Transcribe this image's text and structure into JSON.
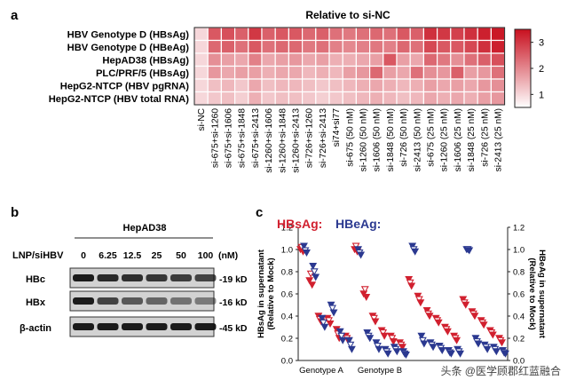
{
  "panel_labels": {
    "a": "a",
    "b": "b",
    "c": "c"
  },
  "colors": {
    "heat_low": "#ffffff",
    "heat_high": "#c8101f",
    "hbsag": "#d1202f",
    "hbeag": "#2b3990"
  },
  "watermark": "头条 @医学顾郡红蓝融合",
  "chart_data": [
    {
      "type": "heatmap",
      "title": "Relative to si-NC",
      "rows": [
        "HBV Genotype D (HBsAg)",
        "HBV Genotype D (HBeAg)",
        "HepAD38 (HBsAg)",
        "PLC/PRF/5 (HBsAg)",
        "HepG2-NTCP (HBV pgRNA)",
        "HepG2-NTCP (HBV total RNA)"
      ],
      "columns": [
        "si-NC",
        "si-675+si-1260",
        "si-675+si-1606",
        "si-675+si-1848",
        "si-675+si-2413",
        "si-1260+si-1606",
        "si-1260+si-1848",
        "si-1260+si-2413",
        "si-726+si-1260",
        "si-726+si-2413",
        "si74+si77",
        "si-675 (50 nM)",
        "si-1260 (50 nM)",
        "si-1606 (50 nM)",
        "si-1848 (50 nM)",
        "si-726 (50 nM)",
        "si-2413 (50 nM)",
        "si-675 (25 nM)",
        "si-1260 (25 nM)",
        "si-1606 (25 nM)",
        "si-1848 (25 nM)",
        "si-726 (25 nM)",
        "si-2413 (25 nM)"
      ],
      "values": [
        [
          1.0,
          2.6,
          2.7,
          2.5,
          3.0,
          2.5,
          2.6,
          2.6,
          2.4,
          2.5,
          2.3,
          2.2,
          2.3,
          2.4,
          2.3,
          2.6,
          2.5,
          3.1,
          3.0,
          2.9,
          3.1,
          3.3,
          3.4
        ],
        [
          1.0,
          2.4,
          2.5,
          2.3,
          2.6,
          2.3,
          2.4,
          2.4,
          2.2,
          2.3,
          2.1,
          2.0,
          2.1,
          2.2,
          2.1,
          2.4,
          2.3,
          2.8,
          2.6,
          2.6,
          2.8,
          3.1,
          3.3
        ],
        [
          1.0,
          1.9,
          1.7,
          1.6,
          2.1,
          1.6,
          1.7,
          1.8,
          1.6,
          1.7,
          1.5,
          1.5,
          1.6,
          1.7,
          2.6,
          1.7,
          1.6,
          2.4,
          2.2,
          1.9,
          2.3,
          2.5,
          2.7
        ],
        [
          1.0,
          1.8,
          1.6,
          1.7,
          1.7,
          1.5,
          1.6,
          1.6,
          1.4,
          1.5,
          1.4,
          1.7,
          1.8,
          2.4,
          1.7,
          1.6,
          2.3,
          1.9,
          1.8,
          2.5,
          1.7,
          1.8,
          2.3
        ],
        [
          1.0,
          1.3,
          1.4,
          1.2,
          1.6,
          1.3,
          1.4,
          1.4,
          1.3,
          1.2,
          1.3,
          1.4,
          1.5,
          1.6,
          1.5,
          1.4,
          1.5,
          1.7,
          1.6,
          1.7,
          1.6,
          1.8,
          1.9
        ],
        [
          1.0,
          1.2,
          1.3,
          1.1,
          1.5,
          1.2,
          1.3,
          1.3,
          1.2,
          1.1,
          1.2,
          1.3,
          1.4,
          1.5,
          1.4,
          1.3,
          1.4,
          1.6,
          1.5,
          1.6,
          1.5,
          1.7,
          1.8
        ]
      ],
      "colorbar": {
        "ticks": [
          1,
          2,
          3
        ],
        "range": [
          0.5,
          3.5
        ]
      }
    },
    {
      "type": "western_blot",
      "header": "HepAD38",
      "row_label": "LNP/siHBV",
      "lanes": [
        "0",
        "6.25",
        "12.5",
        "25",
        "50",
        "100"
      ],
      "unit": "(nM)",
      "bands": [
        {
          "name": "HBc",
          "size": "-19 kD",
          "intensity": [
            1.0,
            0.9,
            0.85,
            0.8,
            0.75,
            0.7
          ]
        },
        {
          "name": "HBx",
          "size": "-16 kD",
          "intensity": [
            1.0,
            0.7,
            0.55,
            0.45,
            0.35,
            0.3
          ]
        },
        {
          "name": "β-actin",
          "size": "-45 kD",
          "intensity": [
            1.0,
            1.0,
            1.0,
            1.0,
            1.0,
            1.0
          ]
        }
      ]
    },
    {
      "type": "scatter",
      "legend": [
        {
          "name": "HBsAg:",
          "color": "#d1202f"
        },
        {
          "name": "HBeAg:",
          "color": "#2b3990"
        }
      ],
      "ylabel_left": "HBsAg in supernatant (Relative to Mock)",
      "ylabel_right": "HBeAg in supernatant (Relative to Mock)",
      "ylim": [
        0,
        1.2
      ],
      "yticks": [
        0.0,
        0.2,
        0.4,
        0.6,
        0.8,
        1.0,
        1.2
      ],
      "xlabels": [
        "Genotype A",
        "Genotype B"
      ],
      "series": [
        {
          "name": "HBsAg:",
          "points": [
            {
              "x": 0,
              "y": 1.0
            },
            {
              "x": 0,
              "y": 1.02
            },
            {
              "x": 0,
              "y": 0.98
            },
            {
              "x": 1,
              "y": 0.72
            },
            {
              "x": 1,
              "y": 0.78
            },
            {
              "x": 1,
              "y": 0.68
            },
            {
              "x": 2,
              "y": 0.4
            },
            {
              "x": 2,
              "y": 0.37
            },
            {
              "x": 2,
              "y": 0.35
            },
            {
              "x": 3,
              "y": 0.38
            },
            {
              "x": 3,
              "y": 0.36
            },
            {
              "x": 3,
              "y": 0.33
            },
            {
              "x": 4,
              "y": 0.28
            },
            {
              "x": 4,
              "y": 0.24
            },
            {
              "x": 4,
              "y": 0.2
            },
            {
              "x": 5,
              "y": 0.22
            },
            {
              "x": 5,
              "y": 0.2
            },
            {
              "x": 5,
              "y": 0.18
            },
            {
              "x": 6,
              "y": 1.0
            },
            {
              "x": 6,
              "y": 1.03
            },
            {
              "x": 6,
              "y": 0.98
            },
            {
              "x": 7,
              "y": 0.6
            },
            {
              "x": 7,
              "y": 0.64
            },
            {
              "x": 7,
              "y": 0.57
            },
            {
              "x": 8,
              "y": 0.4
            },
            {
              "x": 8,
              "y": 0.38
            },
            {
              "x": 8,
              "y": 0.35
            },
            {
              "x": 9,
              "y": 0.27
            },
            {
              "x": 9,
              "y": 0.25
            },
            {
              "x": 9,
              "y": 0.22
            },
            {
              "x": 10,
              "y": 0.22
            },
            {
              "x": 10,
              "y": 0.2
            },
            {
              "x": 10,
              "y": 0.17
            },
            {
              "x": 11,
              "y": 0.16
            },
            {
              "x": 11,
              "y": 0.14
            },
            {
              "x": 11,
              "y": 0.12
            },
            {
              "x": 12,
              "y": 0.73
            },
            {
              "x": 12,
              "y": 0.7
            },
            {
              "x": 12,
              "y": 0.67
            },
            {
              "x": 13,
              "y": 0.58
            },
            {
              "x": 13,
              "y": 0.55
            },
            {
              "x": 13,
              "y": 0.52
            },
            {
              "x": 14,
              "y": 0.45
            },
            {
              "x": 14,
              "y": 0.42
            },
            {
              "x": 14,
              "y": 0.4
            },
            {
              "x": 15,
              "y": 0.38
            },
            {
              "x": 15,
              "y": 0.36
            },
            {
              "x": 15,
              "y": 0.34
            },
            {
              "x": 16,
              "y": 0.3
            },
            {
              "x": 16,
              "y": 0.28
            },
            {
              "x": 16,
              "y": 0.26
            },
            {
              "x": 17,
              "y": 0.22
            },
            {
              "x": 17,
              "y": 0.2
            },
            {
              "x": 17,
              "y": 0.18
            },
            {
              "x": 18,
              "y": 0.55
            },
            {
              "x": 18,
              "y": 0.52
            },
            {
              "x": 18,
              "y": 0.5
            },
            {
              "x": 19,
              "y": 0.44
            },
            {
              "x": 19,
              "y": 0.42
            },
            {
              "x": 19,
              "y": 0.4
            },
            {
              "x": 20,
              "y": 0.36
            },
            {
              "x": 20,
              "y": 0.34
            },
            {
              "x": 20,
              "y": 0.32
            },
            {
              "x": 21,
              "y": 0.27
            },
            {
              "x": 21,
              "y": 0.25
            },
            {
              "x": 21,
              "y": 0.23
            },
            {
              "x": 22,
              "y": 0.2
            },
            {
              "x": 22,
              "y": 0.18
            },
            {
              "x": 22,
              "y": 0.16
            }
          ]
        },
        {
          "name": "HBeAg:",
          "points": [
            {
              "x": 0,
              "y": 1.03
            },
            {
              "x": 0,
              "y": 0.99
            },
            {
              "x": 0,
              "y": 0.97
            },
            {
              "x": 1,
              "y": 0.85
            },
            {
              "x": 1,
              "y": 0.8
            },
            {
              "x": 1,
              "y": 0.75
            },
            {
              "x": 2,
              "y": 0.38
            },
            {
              "x": 2,
              "y": 0.34
            },
            {
              "x": 2,
              "y": 0.3
            },
            {
              "x": 3,
              "y": 0.5
            },
            {
              "x": 3,
              "y": 0.47
            },
            {
              "x": 3,
              "y": 0.43
            },
            {
              "x": 4,
              "y": 0.26
            },
            {
              "x": 4,
              "y": 0.22
            },
            {
              "x": 4,
              "y": 0.18
            },
            {
              "x": 5,
              "y": 0.18
            },
            {
              "x": 5,
              "y": 0.14
            },
            {
              "x": 5,
              "y": 0.1
            },
            {
              "x": 6,
              "y": 1.0
            },
            {
              "x": 6,
              "y": 0.97
            },
            {
              "x": 6,
              "y": 0.95
            },
            {
              "x": 7,
              "y": 0.25
            },
            {
              "x": 7,
              "y": 0.22
            },
            {
              "x": 7,
              "y": 0.2
            },
            {
              "x": 8,
              "y": 0.16
            },
            {
              "x": 8,
              "y": 0.13
            },
            {
              "x": 8,
              "y": 0.1
            },
            {
              "x": 9,
              "y": 0.1
            },
            {
              "x": 9,
              "y": 0.08
            },
            {
              "x": 9,
              "y": 0.06
            },
            {
              "x": 10,
              "y": 0.12
            },
            {
              "x": 10,
              "y": 0.1
            },
            {
              "x": 10,
              "y": 0.08
            },
            {
              "x": 11,
              "y": 0.08
            },
            {
              "x": 11,
              "y": 0.06
            },
            {
              "x": 11,
              "y": 0.05
            },
            {
              "x": 12,
              "y": 1.03
            },
            {
              "x": 12,
              "y": 1.0
            },
            {
              "x": 12,
              "y": 0.98
            },
            {
              "x": 13,
              "y": 0.22
            },
            {
              "x": 13,
              "y": 0.18
            },
            {
              "x": 13,
              "y": 0.15
            },
            {
              "x": 14,
              "y": 0.16
            },
            {
              "x": 14,
              "y": 0.14
            },
            {
              "x": 14,
              "y": 0.12
            },
            {
              "x": 15,
              "y": 0.13
            },
            {
              "x": 15,
              "y": 0.11
            },
            {
              "x": 15,
              "y": 0.09
            },
            {
              "x": 16,
              "y": 0.09
            },
            {
              "x": 16,
              "y": 0.07
            },
            {
              "x": 16,
              "y": 0.06
            },
            {
              "x": 17,
              "y": 0.1
            },
            {
              "x": 17,
              "y": 0.08
            },
            {
              "x": 17,
              "y": 0.06
            },
            {
              "x": 18,
              "y": 1.0
            },
            {
              "x": 18,
              "y": 1.0
            },
            {
              "x": 18,
              "y": 0.99
            },
            {
              "x": 19,
              "y": 0.2
            },
            {
              "x": 19,
              "y": 0.17
            },
            {
              "x": 19,
              "y": 0.15
            },
            {
              "x": 20,
              "y": 0.14
            },
            {
              "x": 20,
              "y": 0.12
            },
            {
              "x": 20,
              "y": 0.1
            },
            {
              "x": 21,
              "y": 0.12
            },
            {
              "x": 21,
              "y": 0.1
            },
            {
              "x": 21,
              "y": 0.08
            },
            {
              "x": 22,
              "y": 0.09
            },
            {
              "x": 22,
              "y": 0.07
            },
            {
              "x": 22,
              "y": 0.06
            }
          ]
        }
      ]
    }
  ]
}
